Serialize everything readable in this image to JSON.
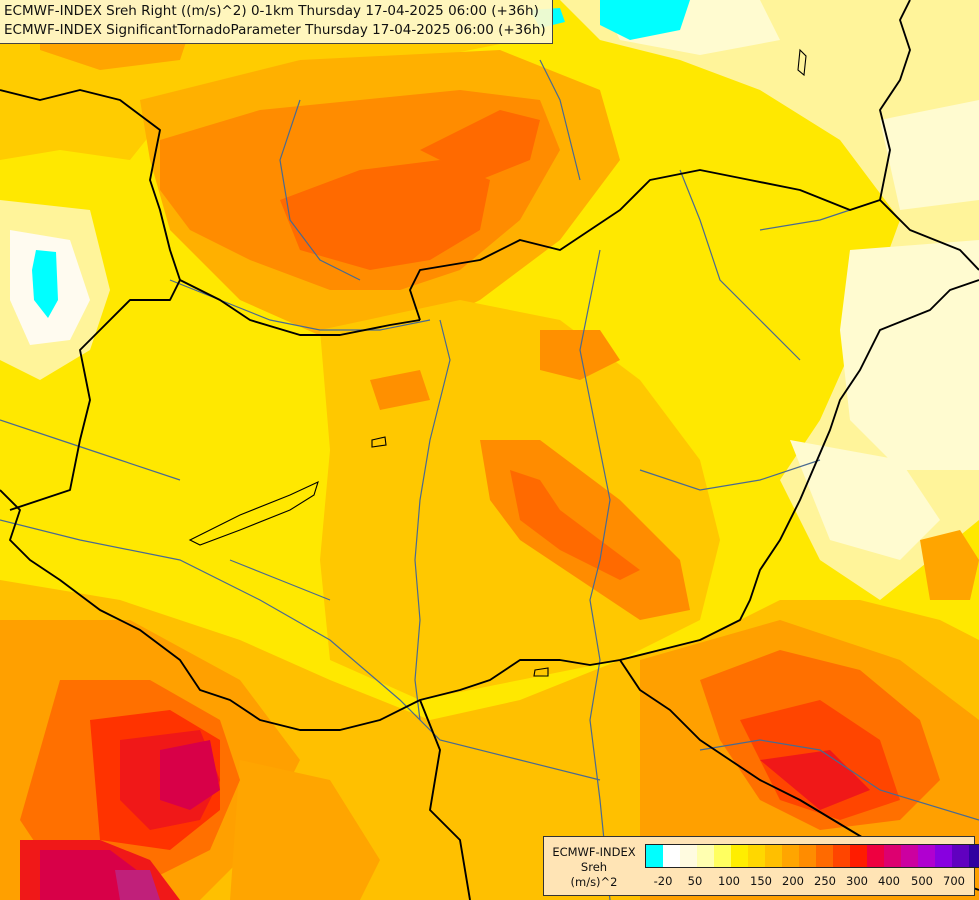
{
  "title": {
    "line1": "ECMWF-INDEX Sreh Right ((m/s)^2) 0-1km Thursday 17-04-2025 06:00 (+36h)",
    "line2": "ECMWF-INDEX SignificantTornadoParameter Thursday 17-04-2025 06:00 (+36h)"
  },
  "legend": {
    "line1": "ECMWF-INDEX",
    "line2": "Sreh",
    "line3": "(m/s)^2",
    "colors": [
      "#00ffff",
      "#ffffff",
      "#fffbe0",
      "#ffffb0",
      "#ffff60",
      "#ffee00",
      "#ffd700",
      "#ffbf00",
      "#ffa500",
      "#ff8c00",
      "#ff6a00",
      "#ff4500",
      "#ff1c00",
      "#ee0040",
      "#dd0070",
      "#cc00a0",
      "#b000d0",
      "#8800e0",
      "#6000c0",
      "#3000a0",
      "#000080"
    ],
    "ticks": [
      "-20",
      "50",
      "100",
      "150",
      "200",
      "250",
      "300",
      "400",
      "500",
      "700"
    ]
  },
  "colors": {
    "cyan": "#00ffff",
    "pale": "#fff8b0",
    "yellow": "#ffe800",
    "gold": "#ffc400",
    "orange": "#ffa200",
    "dark_orange": "#ff7a00",
    "red_orange": "#ff5000",
    "red": "#f01818",
    "crimson": "#d80048",
    "magenta": "#c0207a",
    "border": "#000000",
    "river": "#4a6a90"
  }
}
